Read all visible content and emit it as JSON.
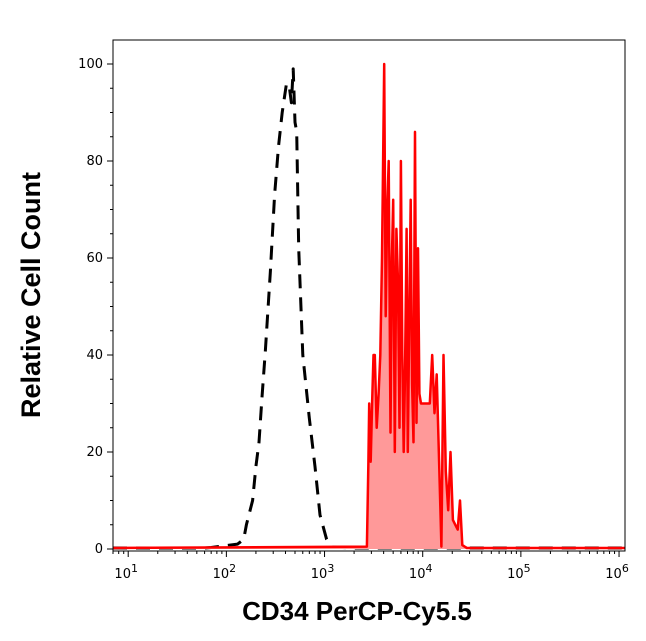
{
  "chart_data": {
    "type": "area",
    "xlabel": "CD34 PerCP-Cy5.5",
    "ylabel": "Relative Cell Count",
    "x_scale": "log",
    "xlim": [
      7,
      1150000
    ],
    "ylim": [
      0,
      105
    ],
    "x_ticks": [
      {
        "value": 10,
        "base": "10",
        "exp": "1"
      },
      {
        "value": 100,
        "base": "10",
        "exp": "2"
      },
      {
        "value": 1000,
        "base": "10",
        "exp": "3"
      },
      {
        "value": 10000,
        "base": "10",
        "exp": "4"
      },
      {
        "value": 100000,
        "base": "10",
        "exp": "5"
      },
      {
        "value": 1000000,
        "base": "10",
        "exp": "6"
      }
    ],
    "y_ticks": [
      0,
      20,
      40,
      60,
      80,
      100
    ],
    "grid": false,
    "legend": "none",
    "series": [
      {
        "style": "dashed",
        "color": "#000000",
        "fill": "none",
        "x": [
          7,
          60,
          70,
          130,
          150,
          160,
          185,
          200,
          215,
          230,
          250,
          280,
          310,
          340,
          370,
          410,
          440,
          460,
          480,
          500,
          520,
          545,
          600,
          700,
          800,
          900,
          1050,
          1200,
          2000,
          1150000
        ],
        "y": [
          0.2,
          0.2,
          0.3,
          1,
          2,
          5,
          10,
          17,
          22,
          31,
          41,
          57,
          73,
          83,
          90,
          96,
          95,
          92,
          99,
          88,
          86,
          62,
          40,
          27,
          17,
          7,
          2,
          0.4,
          0.2,
          0.2
        ]
      },
      {
        "style": "solid",
        "color": "#ff0000",
        "fill": "#ff9999",
        "x": [
          7,
          2700,
          2800,
          2850,
          2950,
          3050,
          3150,
          3250,
          3400,
          3550,
          3700,
          3850,
          4050,
          4200,
          4350,
          4500,
          4700,
          4850,
          5000,
          5200,
          5400,
          5600,
          5800,
          6000,
          6200,
          6400,
          6600,
          6850,
          7050,
          7300,
          7550,
          7800,
          8050,
          8350,
          8650,
          8950,
          9250,
          9600,
          9900,
          10300,
          11000,
          11800,
          12500,
          13200,
          13900,
          14700,
          15500,
          16300,
          17200,
          18200,
          19200,
          20300,
          21500,
          22700,
          24000,
          25300,
          26700,
          28200,
          30000,
          1150000
        ],
        "y": [
          0.2,
          0.5,
          18,
          30,
          18,
          30,
          40,
          40,
          25,
          32,
          40,
          60,
          100,
          48,
          70,
          80,
          24,
          60,
          72,
          20,
          66,
          55,
          25,
          80,
          40,
          20,
          36,
          66,
          20,
          48,
          72,
          34,
          22,
          86,
          26,
          62,
          32,
          30,
          30,
          30,
          30,
          30,
          40,
          28,
          36,
          18,
          0.5,
          40,
          16,
          8,
          20,
          6,
          5,
          4,
          10,
          0.8,
          0.5,
          0.2,
          0.2,
          0.2
        ]
      }
    ]
  }
}
